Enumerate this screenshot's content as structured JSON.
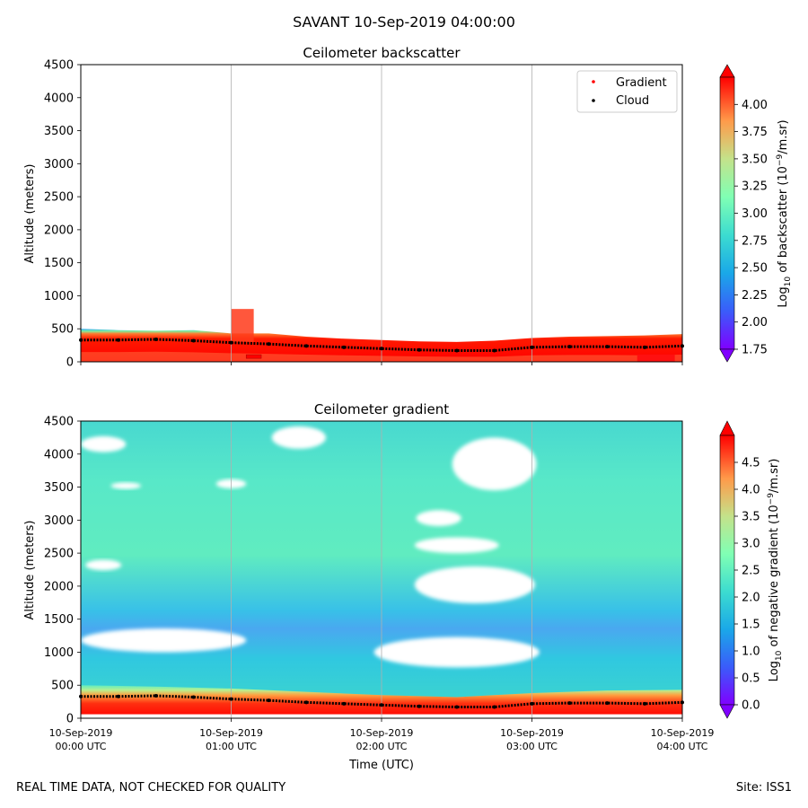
{
  "figure": {
    "suptitle": "SAVANT 10-Sep-2019 04:00:00",
    "disclaimer": "REAL TIME DATA, NOT CHECKED FOR QUALITY",
    "site": "Site: ISS1",
    "xlabel": "Time (UTC)"
  },
  "time_ticks": [
    {
      "hours": 0,
      "date": "10-Sep-2019",
      "time": "00:00 UTC"
    },
    {
      "hours": 1,
      "date": "10-Sep-2019",
      "time": "01:00 UTC"
    },
    {
      "hours": 2,
      "date": "10-Sep-2019",
      "time": "02:00 UTC"
    },
    {
      "hours": 3,
      "date": "10-Sep-2019",
      "time": "03:00 UTC"
    },
    {
      "hours": 4,
      "date": "10-Sep-2019",
      "time": "04:00 UTC"
    }
  ],
  "chart_data": [
    {
      "type": "heatmap",
      "title": "Ceilometer backscatter",
      "xlabel": "Time (UTC)",
      "ylabel": "Altitude (meters)",
      "xlim_hours": [
        0,
        4
      ],
      "ylim": [
        0,
        4500
      ],
      "yticks": [
        0,
        500,
        1000,
        1500,
        2000,
        2500,
        3000,
        3500,
        4000,
        4500
      ],
      "colorbar": {
        "label": "Log10 of backscatter (10^-9/m.sr)",
        "label_main": "Log",
        "label_sub": "10",
        "label_rest": " of backscatter (10",
        "label_sup": "−9",
        "label_end": "/m.sr)",
        "range": [
          1.75,
          4.25
        ],
        "ticks": [
          1.75,
          2.0,
          2.25,
          2.5,
          2.75,
          3.0,
          3.25,
          3.5,
          3.75,
          4.0
        ],
        "tick_labels": [
          "1.75",
          "2.00",
          "2.25",
          "2.50",
          "2.75",
          "3.00",
          "3.25",
          "3.50",
          "3.75",
          "4.00"
        ]
      },
      "legend": {
        "location": "top-right",
        "entries": [
          {
            "label": "Gradient",
            "color": "#ff0000"
          },
          {
            "label": "Cloud",
            "color": "#000000"
          }
        ]
      },
      "boundary_layer_m": [
        [
          0.0,
          500
        ],
        [
          0.25,
          480
        ],
        [
          0.5,
          470
        ],
        [
          0.75,
          480
        ],
        [
          1.0,
          430
        ],
        [
          1.25,
          430
        ],
        [
          1.5,
          380
        ],
        [
          1.75,
          350
        ],
        [
          2.0,
          330
        ],
        [
          2.25,
          310
        ],
        [
          2.5,
          300
        ],
        [
          2.75,
          320
        ],
        [
          3.0,
          360
        ],
        [
          3.25,
          380
        ],
        [
          3.5,
          390
        ],
        [
          3.75,
          400
        ],
        [
          4.0,
          420
        ]
      ],
      "cloud_base_m": [
        [
          0.0,
          330
        ],
        [
          0.25,
          330
        ],
        [
          0.5,
          340
        ],
        [
          0.75,
          320
        ],
        [
          1.0,
          290
        ],
        [
          1.25,
          270
        ],
        [
          1.5,
          240
        ],
        [
          1.75,
          220
        ],
        [
          2.0,
          200
        ],
        [
          2.25,
          180
        ],
        [
          2.5,
          170
        ],
        [
          2.75,
          170
        ],
        [
          3.0,
          220
        ],
        [
          3.25,
          230
        ],
        [
          3.5,
          230
        ],
        [
          3.75,
          220
        ],
        [
          4.0,
          240
        ]
      ],
      "cloud_spike": {
        "t_start": 1.0,
        "t_end": 1.15,
        "altitude_top": 800
      },
      "gradient_mark": {
        "t_start": 1.1,
        "t_end": 1.2,
        "altitude": 80
      },
      "near_surface_patch": {
        "t_start": 3.7,
        "t_end": 3.95,
        "altitude_top": 110
      }
    },
    {
      "type": "heatmap",
      "title": "Ceilometer gradient",
      "xlabel": "Time (UTC)",
      "ylabel": "Altitude (meters)",
      "xlim_hours": [
        0,
        4
      ],
      "ylim": [
        0,
        4500
      ],
      "yticks": [
        0,
        500,
        1000,
        1500,
        2000,
        2500,
        3000,
        3500,
        4000,
        4500
      ],
      "colorbar": {
        "label": "Log10 of negative gradient (10^-9/m.sr)",
        "label_main": "Log",
        "label_sub": "10",
        "label_rest": " of negative gradient (10",
        "label_sup": "−9",
        "label_end": "/m.sr)",
        "range": [
          0.0,
          5.0
        ],
        "ticks": [
          0.0,
          0.5,
          1.0,
          1.5,
          2.0,
          2.5,
          3.0,
          3.5,
          4.0,
          4.5
        ],
        "tick_labels": [
          "0.0",
          "0.5",
          "1.0",
          "1.5",
          "2.0",
          "2.5",
          "3.0",
          "3.5",
          "4.0",
          "4.5"
        ]
      },
      "gaps": [
        {
          "t_center": 1.45,
          "alt_center": 4250,
          "t_half": 0.18,
          "alt_half": 170
        },
        {
          "t_center": 0.15,
          "alt_center": 4150,
          "t_half": 0.15,
          "alt_half": 120
        },
        {
          "t_center": 2.75,
          "alt_center": 3850,
          "t_half": 0.28,
          "alt_half": 400
        },
        {
          "t_center": 1.0,
          "alt_center": 3550,
          "t_half": 0.1,
          "alt_half": 70
        },
        {
          "t_center": 0.3,
          "alt_center": 3520,
          "t_half": 0.1,
          "alt_half": 50
        },
        {
          "t_center": 2.38,
          "alt_center": 3030,
          "t_half": 0.15,
          "alt_half": 120
        },
        {
          "t_center": 2.5,
          "alt_center": 2620,
          "t_half": 0.28,
          "alt_half": 120
        },
        {
          "t_center": 0.15,
          "alt_center": 2320,
          "t_half": 0.12,
          "alt_half": 80
        },
        {
          "t_center": 2.62,
          "alt_center": 2020,
          "t_half": 0.4,
          "alt_half": 280
        },
        {
          "t_center": 0.55,
          "alt_center": 1180,
          "t_half": 0.55,
          "alt_half": 180
        },
        {
          "t_center": 2.5,
          "alt_center": 1000,
          "t_half": 0.55,
          "alt_half": 230
        }
      ],
      "cloud_base_m": [
        [
          0.0,
          330
        ],
        [
          0.25,
          330
        ],
        [
          0.5,
          340
        ],
        [
          0.75,
          320
        ],
        [
          1.0,
          290
        ],
        [
          1.25,
          270
        ],
        [
          1.5,
          240
        ],
        [
          1.75,
          220
        ],
        [
          2.0,
          200
        ],
        [
          2.25,
          180
        ],
        [
          2.5,
          170
        ],
        [
          2.75,
          170
        ],
        [
          3.0,
          220
        ],
        [
          3.25,
          230
        ],
        [
          3.5,
          230
        ],
        [
          3.75,
          220
        ],
        [
          4.0,
          240
        ]
      ],
      "gradient_top_m": [
        [
          0.0,
          500
        ],
        [
          0.5,
          480
        ],
        [
          1.0,
          450
        ],
        [
          1.5,
          400
        ],
        [
          2.0,
          350
        ],
        [
          2.5,
          320
        ],
        [
          3.0,
          380
        ],
        [
          3.5,
          420
        ],
        [
          4.0,
          430
        ]
      ]
    }
  ]
}
